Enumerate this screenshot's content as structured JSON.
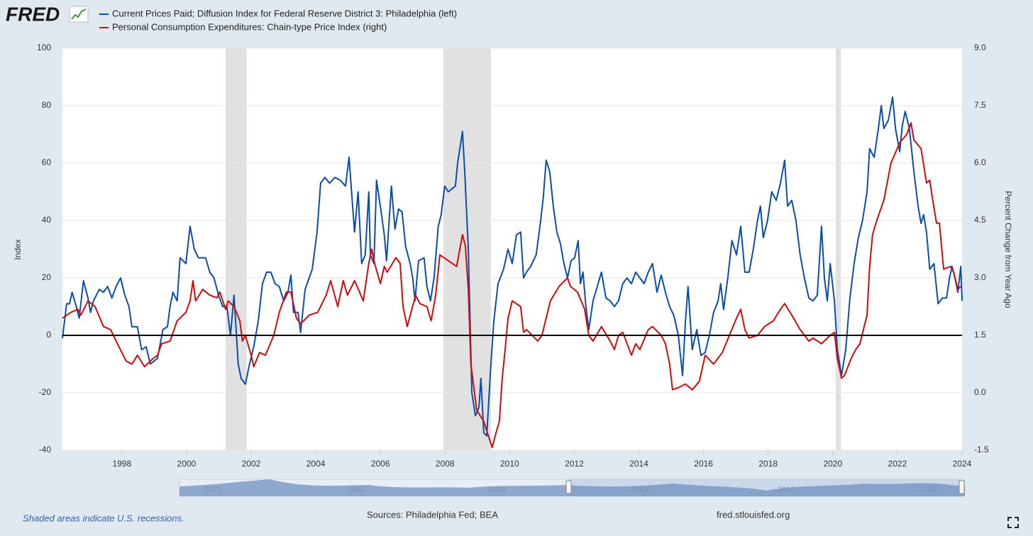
{
  "logo": "FRED",
  "footer": {
    "note": "Shaded areas indicate U.S. recessions.",
    "sources": "Sources: Philadelphia Fed; BEA",
    "site": "fred.stlouisfed.org"
  },
  "navigator": {
    "labels": [
      "1970",
      "1980",
      "1990",
      "2000",
      "2010",
      "2020"
    ]
  },
  "chart_data": {
    "type": "line",
    "ylabel": "Index",
    "y2label": "Percent Change from Year Ago",
    "xlim": [
      1996.16,
      2024.0
    ],
    "xticks": [
      1998,
      2000,
      2002,
      2004,
      2006,
      2008,
      2010,
      2012,
      2014,
      2016,
      2018,
      2020,
      2022,
      2024
    ],
    "ylim": [
      -40,
      100
    ],
    "yticks": [
      -40,
      -20,
      0,
      20,
      40,
      60,
      80,
      100
    ],
    "y2lim": [
      -1.5,
      9.0
    ],
    "y2ticks": [
      -1.5,
      {
        "value": 0,
        "label": "0.0"
      },
      1.5,
      {
        "value": 3,
        "label": "3.0"
      },
      4.5,
      {
        "value": 6,
        "label": "6.0"
      },
      7.5,
      {
        "value": 9,
        "label": "9.0"
      }
    ],
    "grid": true,
    "zero_line": true,
    "recessions": [
      [
        2001.21,
        2001.86
      ],
      [
        2007.95,
        2009.42
      ],
      [
        2020.09,
        2020.25
      ]
    ],
    "legend": "top-left",
    "series": [
      {
        "name": "Current Prices Paid; Diffusion Index for Federal Reserve District 3: Philadelphia (left)",
        "color": "#0b4dab",
        "axis": "y",
        "x": [
          1996.16,
          1996.29,
          1996.38,
          1996.46,
          1996.59,
          1996.68,
          1996.81,
          1996.95,
          1997.03,
          1997.12,
          1997.3,
          1997.43,
          1997.56,
          1997.69,
          1997.82,
          1997.96,
          1998.09,
          1998.22,
          1998.31,
          1998.48,
          1998.61,
          1998.75,
          1998.88,
          1999.1,
          1999.27,
          1999.41,
          1999.49,
          1999.58,
          1999.71,
          1999.8,
          1999.98,
          2000.11,
          2000.24,
          2000.37,
          2000.59,
          2000.72,
          2000.85,
          2000.99,
          2001.12,
          2001.25,
          2001.36,
          2001.47,
          2001.6,
          2001.69,
          2001.82,
          2001.95,
          2002.08,
          2002.22,
          2002.35,
          2002.48,
          2002.61,
          2002.74,
          2002.87,
          2003.01,
          2003.14,
          2003.23,
          2003.31,
          2003.45,
          2003.53,
          2003.67,
          2003.89,
          2004.04,
          2004.15,
          2004.28,
          2004.43,
          2004.59,
          2004.76,
          2004.92,
          2005.03,
          2005.14,
          2005.2,
          2005.31,
          2005.42,
          2005.53,
          2005.64,
          2005.69,
          2005.8,
          2005.88,
          2006.01,
          2006.12,
          2006.19,
          2006.34,
          2006.45,
          2006.56,
          2006.67,
          2006.78,
          2006.92,
          2007.0,
          2007.07,
          2007.18,
          2007.35,
          2007.44,
          2007.55,
          2007.66,
          2007.79,
          2007.88,
          2007.99,
          2008.1,
          2008.21,
          2008.32,
          2008.39,
          2008.54,
          2008.61,
          2008.72,
          2008.83,
          2008.94,
          2009.05,
          2009.11,
          2009.2,
          2009.29,
          2009.42,
          2009.51,
          2009.64,
          2009.81,
          2009.95,
          2010.08,
          2010.21,
          2010.34,
          2010.43,
          2010.52,
          2010.65,
          2010.82,
          2010.96,
          2011.04,
          2011.13,
          2011.24,
          2011.35,
          2011.46,
          2011.57,
          2011.68,
          2011.79,
          2011.9,
          2012.01,
          2012.12,
          2012.19,
          2012.27,
          2012.36,
          2012.45,
          2012.58,
          2012.71,
          2012.84,
          2012.98,
          2013.11,
          2013.24,
          2013.37,
          2013.5,
          2013.63,
          2013.77,
          2013.9,
          2014.03,
          2014.16,
          2014.29,
          2014.42,
          2014.56,
          2014.69,
          2014.82,
          2014.95,
          2015.08,
          2015.22,
          2015.35,
          2015.44,
          2015.52,
          2015.65,
          2015.79,
          2015.92,
          2016.05,
          2016.18,
          2016.31,
          2016.45,
          2016.53,
          2016.62,
          2016.75,
          2016.88,
          2017.02,
          2017.15,
          2017.28,
          2017.41,
          2017.54,
          2017.67,
          2017.76,
          2017.85,
          2017.98,
          2018.11,
          2018.25,
          2018.38,
          2018.51,
          2018.6,
          2018.73,
          2018.86,
          2018.99,
          2019.12,
          2019.26,
          2019.39,
          2019.52,
          2019.65,
          2019.74,
          2019.83,
          2019.92,
          2020.05,
          2020.14,
          2020.27,
          2020.4,
          2020.53,
          2020.66,
          2020.79,
          2020.92,
          2021.06,
          2021.14,
          2021.28,
          2021.41,
          2021.5,
          2021.58,
          2021.72,
          2021.85,
          2021.94,
          2022.07,
          2022.15,
          2022.24,
          2022.37,
          2022.51,
          2022.64,
          2022.73,
          2022.81,
          2022.9,
          2023.0,
          2023.13,
          2023.26,
          2023.39,
          2023.52,
          2023.61,
          2023.69,
          2023.78,
          2023.87,
          2023.96,
          2024.0
        ],
        "values": [
          -1,
          11,
          11,
          15,
          10,
          6,
          19,
          13,
          8,
          12,
          16,
          15,
          17,
          13,
          17,
          20,
          14,
          10,
          3,
          3,
          -5,
          -4,
          -10,
          -8,
          2,
          3,
          10,
          15,
          12,
          27,
          25,
          38,
          30,
          27,
          27,
          22,
          20,
          14,
          10,
          10,
          0,
          14,
          -10,
          -15,
          -17,
          -10,
          -4,
          5,
          18,
          22,
          22,
          18,
          17,
          12,
          15,
          21,
          8,
          8,
          1,
          16,
          23,
          36,
          53,
          55,
          53,
          55,
          54,
          52,
          62,
          45,
          36,
          50,
          25,
          28,
          50,
          28,
          25,
          54,
          44,
          35,
          26,
          52,
          37,
          44,
          43,
          31,
          25,
          20,
          12,
          26,
          27,
          17,
          12,
          20,
          38,
          42,
          52,
          50,
          51,
          52,
          60,
          71,
          57,
          30,
          -20,
          -28,
          -25,
          -15,
          -34,
          -35,
          -10,
          5,
          18,
          23,
          30,
          25,
          35,
          36,
          20,
          22,
          24,
          28,
          40,
          48,
          61,
          57,
          45,
          36,
          32,
          25,
          20,
          26,
          27,
          33,
          18,
          22,
          10,
          2,
          12,
          17,
          22,
          13,
          12,
          10,
          12,
          18,
          20,
          18,
          22,
          20,
          18,
          22,
          25,
          15,
          21,
          15,
          10,
          7,
          0,
          -14,
          5,
          17,
          -5,
          2,
          -7,
          -6,
          0,
          8,
          12,
          18,
          9,
          20,
          33,
          28,
          38,
          22,
          22,
          30,
          40,
          45,
          34,
          40,
          50,
          47,
          53,
          61,
          45,
          47,
          40,
          28,
          20,
          13,
          12,
          14,
          38,
          20,
          12,
          25,
          12,
          -5,
          -14,
          -5,
          13,
          25,
          34,
          40,
          50,
          65,
          62,
          72,
          80,
          72,
          75,
          83,
          72,
          64,
          73,
          78,
          72,
          57,
          45,
          39,
          42,
          36,
          23,
          25,
          11,
          13,
          13,
          20,
          24,
          20,
          15,
          24,
          12
        ]
      },
      {
        "name": "Personal Consumption Expenditures: Chain-type Price Index (right)",
        "color": "#d10a0a",
        "axis": "y2",
        "x": [
          1996.16,
          1996.42,
          1996.64,
          1996.73,
          1996.95,
          1997.17,
          1997.43,
          1997.65,
          1997.91,
          1998.13,
          1998.31,
          1998.48,
          1998.7,
          1998.97,
          1999.1,
          1999.23,
          1999.49,
          1999.71,
          1999.98,
          2000.11,
          2000.2,
          2000.28,
          2000.5,
          2000.72,
          2000.94,
          2001.03,
          2001.21,
          2001.29,
          2001.47,
          2001.65,
          2001.73,
          2001.82,
          2002.0,
          2002.08,
          2002.26,
          2002.44,
          2002.7,
          2002.87,
          2003.09,
          2003.23,
          2003.4,
          2003.53,
          2003.8,
          2004.06,
          2004.32,
          2004.46,
          2004.68,
          2004.85,
          2004.98,
          2005.2,
          2005.47,
          2005.64,
          2005.73,
          2005.82,
          2006.0,
          2006.12,
          2006.21,
          2006.48,
          2006.61,
          2006.7,
          2006.83,
          2007.09,
          2007.22,
          2007.44,
          2007.57,
          2007.71,
          2007.84,
          2008.1,
          2008.36,
          2008.54,
          2008.63,
          2008.72,
          2008.8,
          2008.98,
          2009.2,
          2009.37,
          2009.46,
          2009.55,
          2009.68,
          2009.77,
          2009.86,
          2009.95,
          2010.08,
          2010.34,
          2010.43,
          2010.52,
          2010.87,
          2011.0,
          2011.26,
          2011.53,
          2011.79,
          2011.88,
          2012.1,
          2012.32,
          2012.45,
          2012.58,
          2012.84,
          2013.11,
          2013.24,
          2013.37,
          2013.5,
          2013.77,
          2013.9,
          2014.03,
          2014.29,
          2014.42,
          2014.69,
          2014.82,
          2014.95,
          2015.04,
          2015.26,
          2015.44,
          2015.65,
          2015.87,
          2016.05,
          2016.31,
          2016.58,
          2016.8,
          2017.02,
          2017.15,
          2017.28,
          2017.41,
          2017.67,
          2017.89,
          2018.16,
          2018.38,
          2018.51,
          2018.73,
          2018.99,
          2019.26,
          2019.39,
          2019.65,
          2019.92,
          2020.05,
          2020.14,
          2020.27,
          2020.36,
          2020.57,
          2020.71,
          2020.84,
          2020.97,
          2021.06,
          2021.14,
          2021.23,
          2021.36,
          2021.58,
          2021.8,
          2022.07,
          2022.29,
          2022.42,
          2022.51,
          2022.73,
          2022.9,
          2023.0,
          2023.08,
          2023.21,
          2023.3,
          2023.43,
          2023.65,
          2023.74,
          2023.87,
          2023.96
        ],
        "values": [
          1.95,
          2.1,
          2.18,
          2.03,
          2.4,
          2.25,
          1.73,
          1.65,
          1.2,
          0.83,
          0.75,
          0.98,
          0.68,
          0.9,
          0.98,
          1.28,
          1.35,
          1.88,
          2.1,
          2.4,
          2.93,
          2.4,
          2.7,
          2.55,
          2.48,
          2.63,
          2.18,
          2.4,
          2.25,
          1.88,
          1.35,
          1.5,
          0.98,
          0.68,
          1.05,
          0.98,
          1.5,
          2.1,
          2.63,
          2.63,
          1.95,
          1.8,
          2.03,
          2.1,
          2.55,
          2.93,
          2.25,
          2.93,
          2.55,
          2.93,
          2.4,
          3.38,
          3.75,
          3.38,
          2.85,
          3.3,
          3.15,
          3.53,
          3.38,
          2.25,
          1.73,
          2.55,
          2.33,
          2.25,
          1.88,
          2.55,
          3.6,
          3.45,
          3.3,
          4.13,
          3.83,
          2.7,
          0.75,
          -0.45,
          -0.75,
          -1.2,
          -1.43,
          -1.13,
          -0.75,
          0.38,
          1.13,
          1.95,
          2.4,
          2.25,
          1.58,
          1.65,
          1.35,
          1.5,
          2.4,
          2.78,
          3.0,
          2.78,
          2.63,
          2.18,
          1.5,
          1.35,
          1.73,
          1.35,
          1.13,
          1.5,
          1.58,
          0.98,
          1.28,
          1.13,
          1.65,
          1.73,
          1.5,
          1.28,
          0.75,
          0.08,
          0.15,
          0.23,
          0.08,
          0.3,
          0.98,
          0.75,
          1.05,
          1.5,
          1.95,
          2.18,
          1.65,
          1.43,
          1.5,
          1.73,
          1.88,
          2.18,
          2.33,
          2.03,
          1.65,
          1.35,
          1.43,
          1.28,
          1.5,
          1.58,
          0.9,
          0.38,
          0.45,
          0.9,
          1.13,
          1.28,
          1.73,
          2.03,
          3.3,
          4.13,
          4.5,
          5.03,
          6.0,
          6.53,
          6.75,
          7.05,
          6.6,
          6.38,
          5.48,
          5.55,
          5.1,
          4.43,
          4.43,
          3.23,
          3.3,
          3.15,
          2.7,
          2.78
        ]
      }
    ]
  }
}
